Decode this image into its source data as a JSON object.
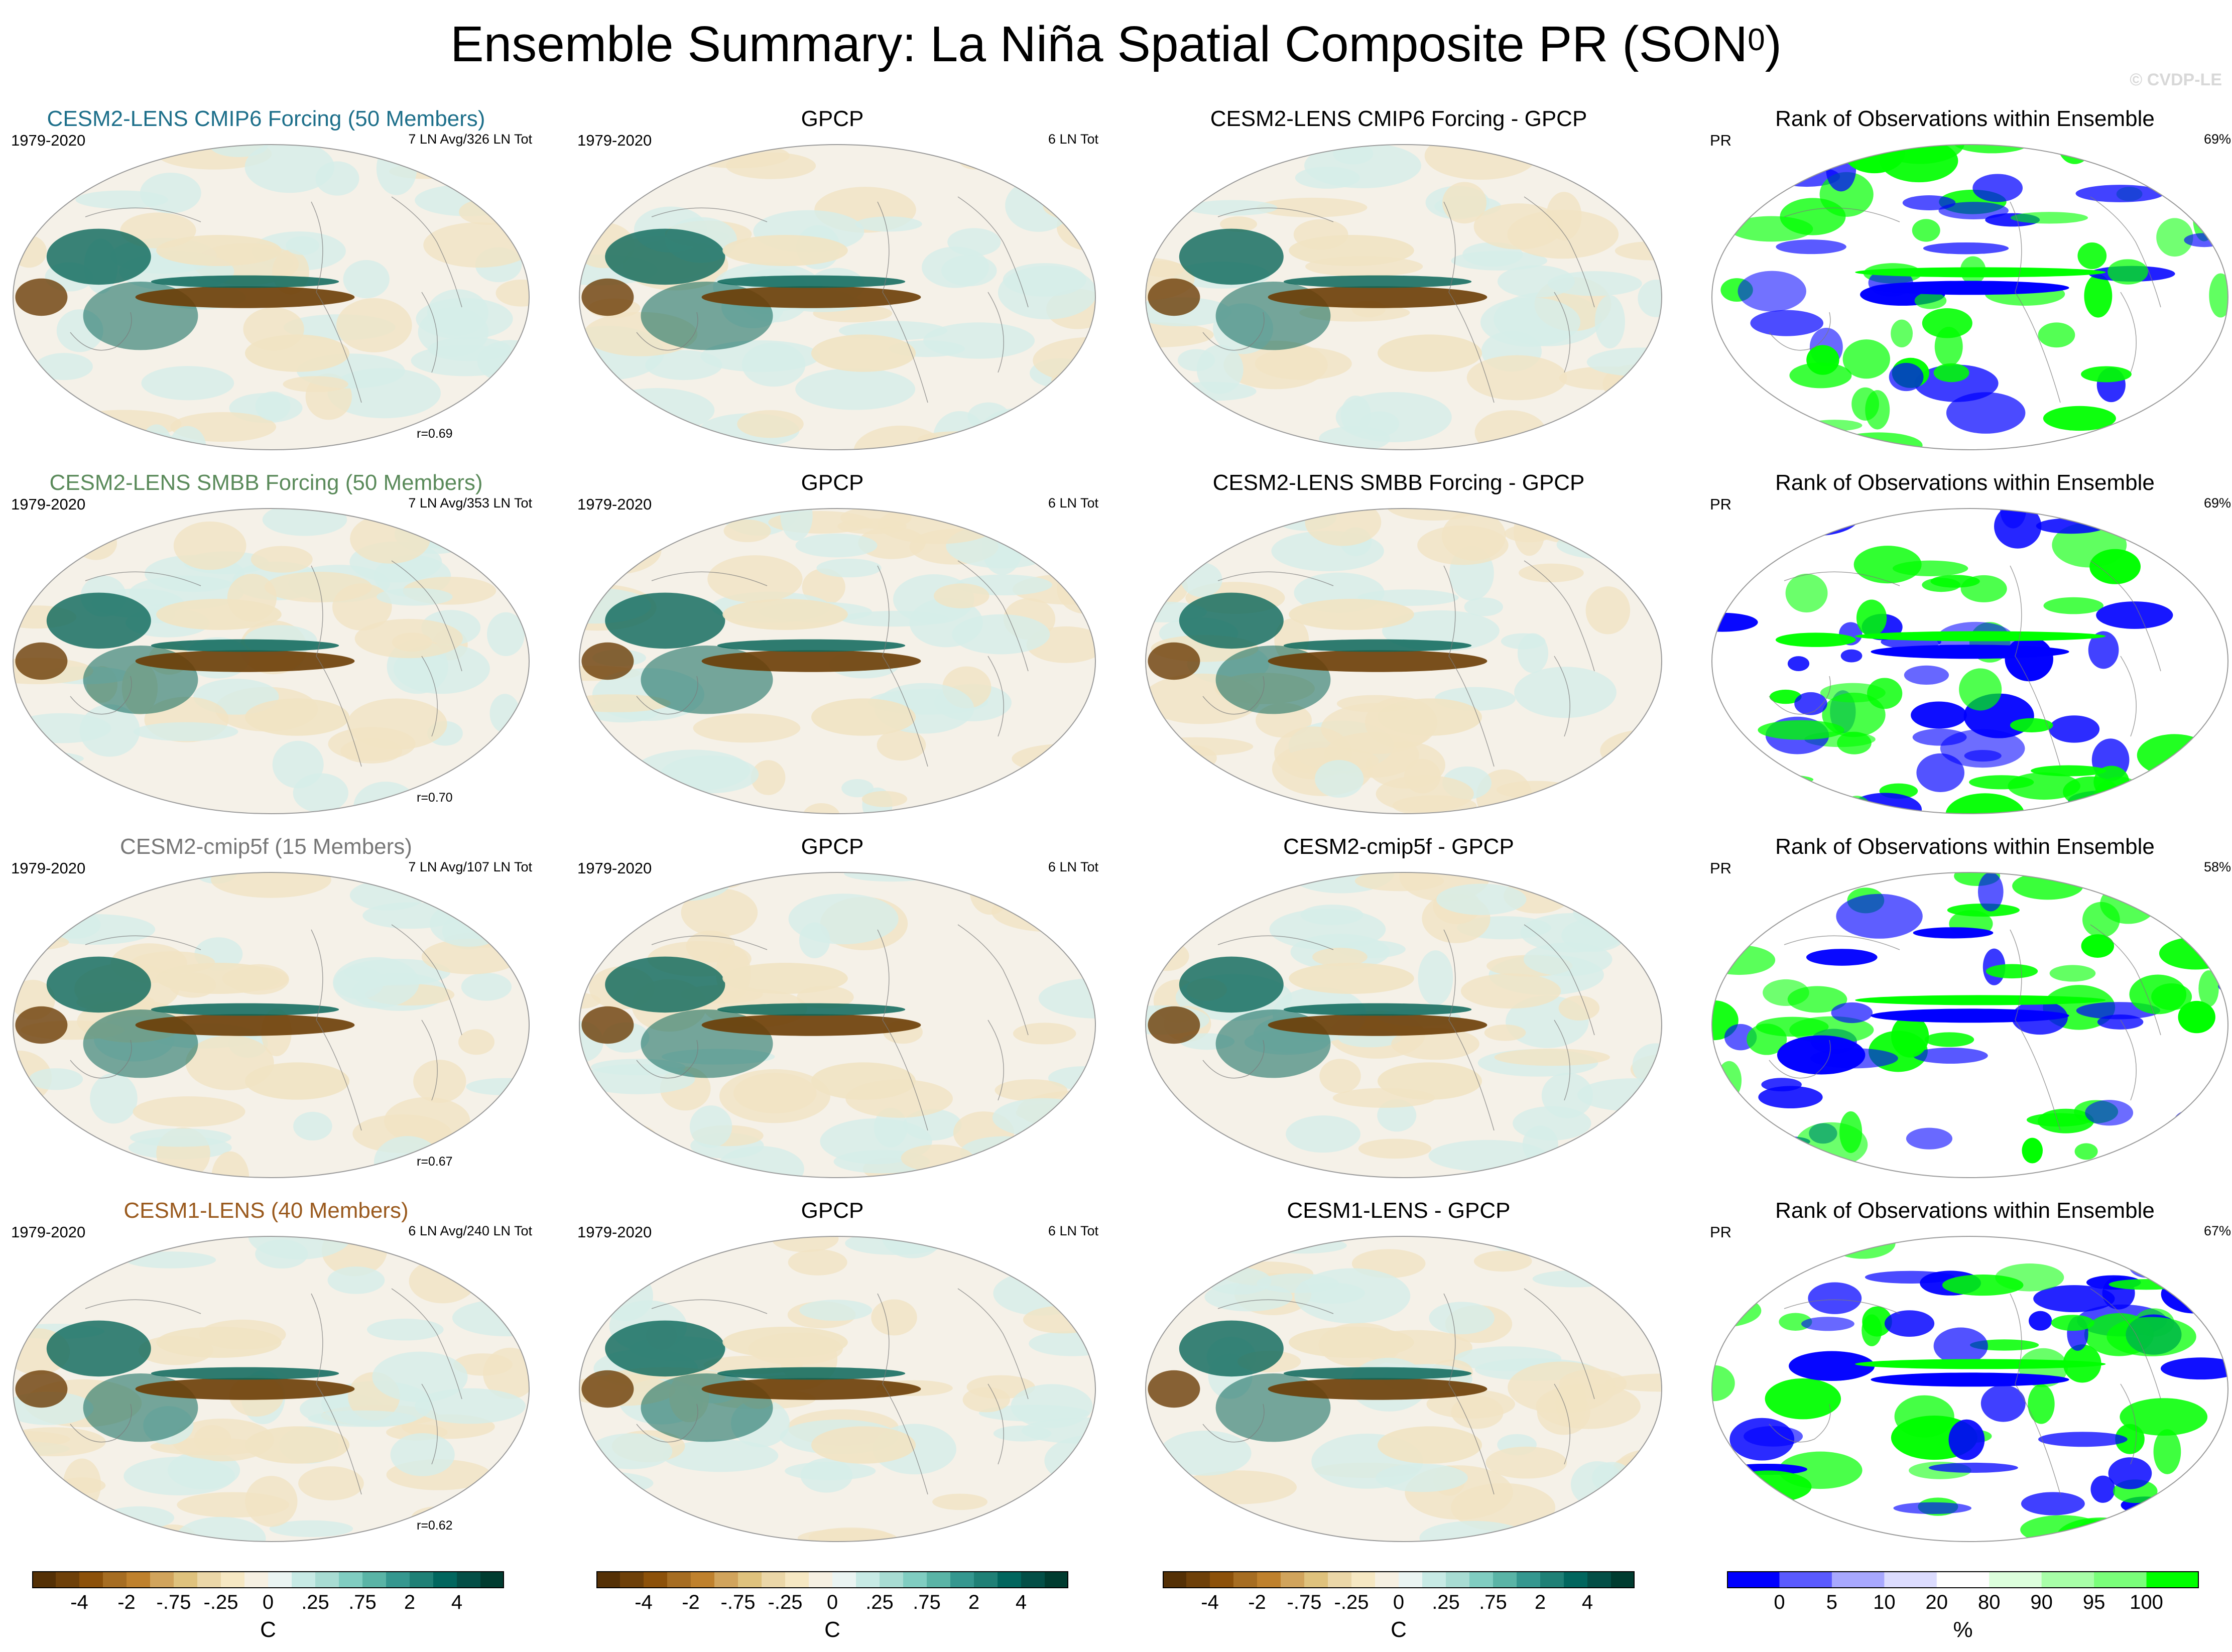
{
  "header": {
    "title_main": "Ensemble Summary: La Niña Spatial Composite PR (SON",
    "title_sup": "0",
    "title_close": ")",
    "watermark": "© CVDP-LE"
  },
  "colors": {
    "dry_dark": "#6b3d06",
    "dry_light": "#f1e3c3",
    "neutral": "#f5f1e8",
    "wet_light": "#d6eee9",
    "wet_dark": "#0a6659",
    "rank_low": "#0000ff",
    "rank_high": "#00ff00"
  },
  "rows": [
    {
      "model": {
        "title": "CESM2-LENS CMIP6 Forcing (50 Members)",
        "title_color": "#1d6f8a",
        "left": "1979-2020",
        "right": "7 LN Avg/326 LN Tot",
        "corr": "r=0.69"
      },
      "obs": {
        "title": "GPCP",
        "left": "1979-2020",
        "right": "6 LN Tot"
      },
      "diff": {
        "title": "CESM2-LENS CMIP6 Forcing - GPCP"
      },
      "rank": {
        "title": "Rank of Observations within Ensemble",
        "left": "PR",
        "right": "69%"
      }
    },
    {
      "model": {
        "title": "CESM2-LENS SMBB Forcing (50 Members)",
        "title_color": "#5a8a5a",
        "left": "1979-2020",
        "right": "7 LN Avg/353 LN Tot",
        "corr": "r=0.70"
      },
      "obs": {
        "title": "GPCP",
        "left": "1979-2020",
        "right": "6 LN Tot"
      },
      "diff": {
        "title": "CESM2-LENS SMBB Forcing - GPCP"
      },
      "rank": {
        "title": "Rank of Observations within Ensemble",
        "left": "PR",
        "right": "69%"
      }
    },
    {
      "model": {
        "title": "CESM2-cmip5f (15 Members)",
        "title_color": "#777777",
        "left": "1979-2020",
        "right": "7 LN Avg/107 LN Tot",
        "corr": "r=0.67"
      },
      "obs": {
        "title": "GPCP",
        "left": "1979-2020",
        "right": "6 LN Tot"
      },
      "diff": {
        "title": "CESM2-cmip5f - GPCP"
      },
      "rank": {
        "title": "Rank of Observations within Ensemble",
        "left": "PR",
        "right": "58%"
      }
    },
    {
      "model": {
        "title": "CESM1-LENS (40 Members)",
        "title_color": "#9a5a1e",
        "left": "1979-2020",
        "right": "6 LN Avg/240 LN Tot",
        "corr": "r=0.62"
      },
      "obs": {
        "title": "GPCP",
        "left": "1979-2020",
        "right": "6 LN Tot"
      },
      "diff": {
        "title": "CESM1-LENS - GPCP"
      },
      "rank": {
        "title": "Rank of Observations within Ensemble",
        "left": "PR",
        "right": "67%"
      }
    }
  ],
  "colorbars": {
    "anomaly": {
      "unit": "C",
      "tick_labels": [
        "-4",
        "-2",
        "-.75",
        "-.25",
        "0",
        ".25",
        ".75",
        "2",
        "4"
      ],
      "colors": [
        "#543005",
        "#6e4009",
        "#8c510a",
        "#a66d22",
        "#bf812d",
        "#d1a45c",
        "#dfc27d",
        "#ebd7a8",
        "#f6e8c3",
        "#f6f0e2",
        "#eaf4f2",
        "#c7eae5",
        "#a8dcd3",
        "#80cdc1",
        "#5ab4a6",
        "#35978f",
        "#1f8076",
        "#01665e",
        "#034f47",
        "#003c30"
      ]
    },
    "rank": {
      "unit": "%",
      "tick_labels": [
        "0",
        "5",
        "10",
        "20",
        "80",
        "90",
        "95",
        "100"
      ],
      "colors": [
        "#0000ff",
        "#5a5aff",
        "#a8a8ff",
        "#dcdcff",
        "#ffffff",
        "#dcffdc",
        "#a8ffa8",
        "#7aff7a",
        "#00ff00"
      ]
    }
  },
  "chart_data": {
    "type": "heatmap",
    "title": "Ensemble Summary: La Niña Spatial Composite PR (SON0)",
    "projection": "Robinson (global map panels)",
    "layout": "4 rows x 4 columns",
    "columns": [
      "ensemble mean composite",
      "GPCP observations",
      "model minus GPCP",
      "rank of observations within ensemble"
    ],
    "anomaly_unit": "C",
    "anomaly_scale": [
      -4,
      -2,
      -0.75,
      -0.25,
      0,
      0.25,
      0.75,
      2,
      4
    ],
    "rank_unit": "%",
    "rank_scale": [
      0,
      5,
      10,
      20,
      80,
      90,
      95,
      100
    ],
    "pattern_correlations": [
      0.69,
      0.7,
      0.67,
      0.62
    ],
    "rank_percent_in_range": [
      69,
      69,
      58,
      67
    ],
    "period": "1979-2020"
  }
}
